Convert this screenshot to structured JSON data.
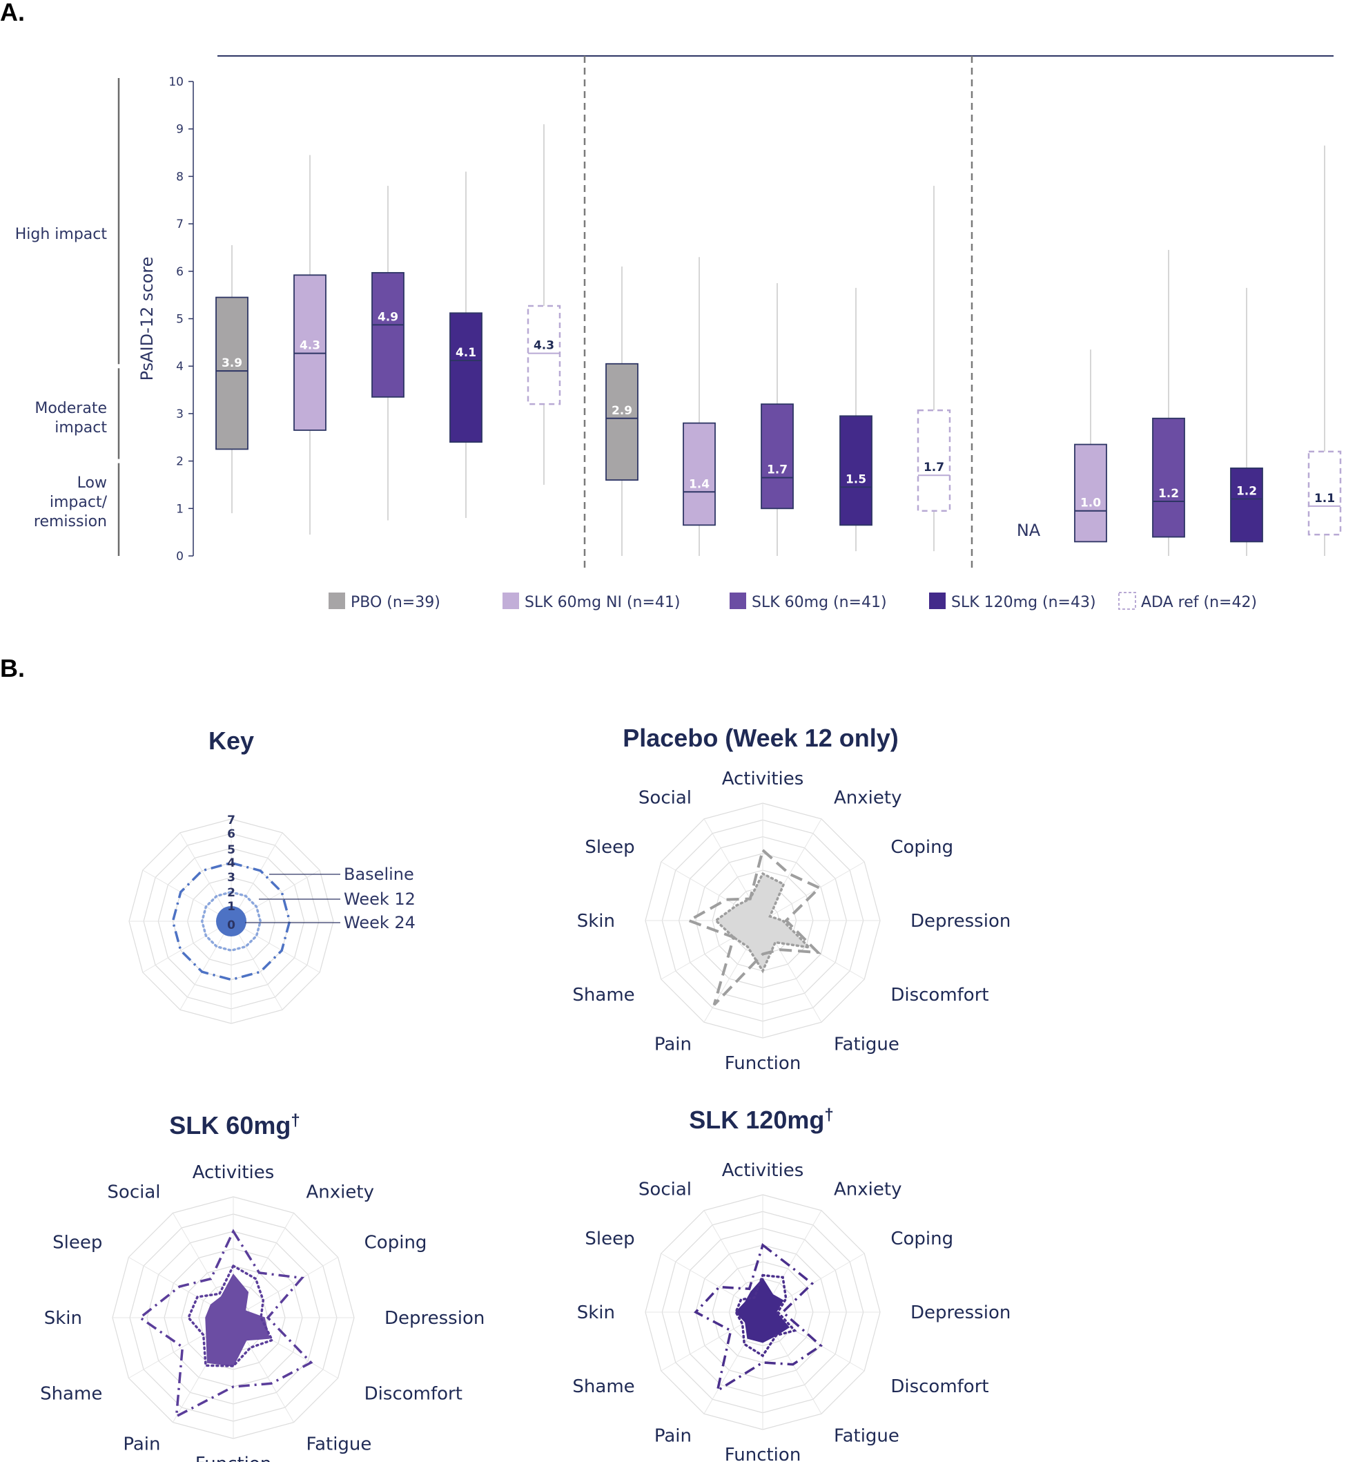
{
  "panel_a": {
    "label": "A."
  },
  "panel_b": {
    "label": "B."
  },
  "chart_data": [
    {
      "type": "boxplot",
      "ylabel": "PsAID-12 score",
      "ylim": [
        0,
        10
      ],
      "yticks": [
        0,
        1,
        2,
        3,
        4,
        5,
        6,
        7,
        8,
        9,
        10
      ],
      "impact_bands": [
        {
          "label": [
            "High impact"
          ],
          "range": [
            4,
            10
          ]
        },
        {
          "label": [
            "Moderate",
            "impact"
          ],
          "range": [
            2,
            4
          ]
        },
        {
          "label": [
            "Low",
            "impact/",
            "remission"
          ],
          "range": [
            0,
            2
          ]
        }
      ],
      "legend_position": "bottom",
      "series": [
        {
          "name": "PBO (n=39)",
          "color": "#a7a5a6",
          "style": "filled"
        },
        {
          "name": "SLK 60mg NI (n=41)",
          "color": "#c2aed8",
          "style": "filled"
        },
        {
          "name": "SLK 60mg (n=41)",
          "color": "#6b4da3",
          "style": "filled"
        },
        {
          "name": "SLK 120mg (n=43)",
          "color": "#432a8a",
          "style": "filled"
        },
        {
          "name": "ADA ref (n=42)",
          "color": "#b8a9d4",
          "style": "dashed"
        }
      ],
      "groups": [
        {
          "boxes": [
            {
              "series": 0,
              "min": 0.9,
              "q1": 2.25,
              "median": 3.9,
              "q3": 5.45,
              "max": 6.55,
              "label": "3.9"
            },
            {
              "series": 1,
              "min": 0.45,
              "q1": 2.65,
              "median": 4.27,
              "q3": 5.92,
              "max": 8.45,
              "label": "4.3"
            },
            {
              "series": 2,
              "min": 0.75,
              "q1": 3.35,
              "median": 4.87,
              "q3": 5.97,
              "max": 7.8,
              "label": "4.9"
            },
            {
              "series": 3,
              "min": 0.8,
              "q1": 2.4,
              "median": 4.12,
              "q3": 5.12,
              "max": 8.1,
              "label": "4.1"
            },
            {
              "series": 4,
              "min": 1.5,
              "q1": 3.2,
              "median": 4.27,
              "q3": 5.27,
              "max": 9.1,
              "label": "4.3"
            }
          ]
        },
        {
          "boxes": [
            {
              "series": 0,
              "min": 0.0,
              "q1": 1.6,
              "median": 2.9,
              "q3": 4.05,
              "max": 6.1,
              "label": "2.9"
            },
            {
              "series": 1,
              "min": 0.0,
              "q1": 0.65,
              "median": 1.35,
              "q3": 2.8,
              "max": 6.3,
              "label": "1.4"
            },
            {
              "series": 2,
              "min": 0.0,
              "q1": 1.0,
              "median": 1.65,
              "q3": 3.2,
              "max": 5.75,
              "label": "1.7"
            },
            {
              "series": 3,
              "min": 0.1,
              "q1": 0.65,
              "median": 1.45,
              "q3": 2.95,
              "max": 5.65,
              "label": "1.5"
            },
            {
              "series": 4,
              "min": 0.1,
              "q1": 0.95,
              "median": 1.7,
              "q3": 3.07,
              "max": 7.8,
              "label": "1.7"
            }
          ]
        },
        {
          "na_label": "NA",
          "boxes": [
            {
              "series": 1,
              "min": 0.3,
              "q1": 0.3,
              "median": 0.95,
              "q3": 2.35,
              "max": 4.35,
              "label": "1.0"
            },
            {
              "series": 2,
              "min": 0.0,
              "q1": 0.4,
              "median": 1.15,
              "q3": 2.9,
              "max": 6.45,
              "label": "1.2"
            },
            {
              "series": 3,
              "min": 0.0,
              "q1": 0.3,
              "median": 1.2,
              "q3": 1.85,
              "max": 5.65,
              "label": "1.2"
            },
            {
              "series": 4,
              "min": 0.0,
              "q1": 0.45,
              "median": 1.05,
              "q3": 2.2,
              "max": 8.65,
              "label": "1.1"
            }
          ]
        }
      ]
    },
    {
      "type": "radar-key",
      "title": "Key",
      "rings": [
        0,
        1,
        2,
        3,
        4,
        5,
        6,
        7
      ],
      "entries": [
        {
          "label": "Baseline",
          "value": 4,
          "style": "dash-dot"
        },
        {
          "label": "Week 12",
          "value": 2,
          "style": "dotted"
        },
        {
          "label": "Week 24",
          "value": 0,
          "style": "filled"
        }
      ],
      "color": "#4d72c4"
    },
    {
      "type": "radar",
      "title": "Placebo (Week 12 only)",
      "title_sup": "",
      "color": "#9e9e9e",
      "fill": "#d9d9d9",
      "axes": [
        "Activities",
        "Anxiety",
        "Coping",
        "Depression",
        "Discomfort",
        "Fatigue",
        "Function",
        "Pain",
        "Shame",
        "Skin",
        "Sleep",
        "Social"
      ],
      "rmax": 7,
      "series": [
        {
          "label": "Baseline",
          "style": "dashed",
          "values": [
            4.2,
            3.2,
            3.9,
            1.4,
            3.8,
            2.0,
            2.0,
            5.8,
            2.0,
            4.4,
            2.5,
            1.5
          ]
        },
        {
          "label": "Week 12",
          "style": "dotted-filled",
          "values": [
            2.8,
            2.5,
            0.5,
            1.2,
            3.2,
            1.5,
            3.0,
            1.8,
            2.0,
            2.8,
            1.8,
            1.5
          ]
        }
      ]
    },
    {
      "type": "radar",
      "title": "SLK 60mg",
      "title_sup": "†",
      "color": "#5a3d9a",
      "fill": "#6b4da3",
      "axes": [
        "Activities",
        "Anxiety",
        "Coping",
        "Depression",
        "Discomfort",
        "Fatigue",
        "Function",
        "Pain",
        "Shame",
        "Skin",
        "Sleep",
        "Social"
      ],
      "rmax": 7,
      "series": [
        {
          "label": "Baseline",
          "style": "dash-dot",
          "values": [
            5.0,
            3.0,
            4.6,
            2.0,
            5.2,
            4.4,
            4.0,
            6.6,
            3.4,
            5.4,
            3.6,
            2.6
          ]
        },
        {
          "label": "Week 12",
          "style": "dotted",
          "values": [
            3.0,
            2.6,
            2.0,
            1.6,
            2.6,
            2.0,
            2.8,
            3.2,
            2.0,
            2.6,
            2.4,
            1.6
          ]
        },
        {
          "label": "Week 24",
          "style": "filled",
          "values": [
            2.5,
            1.7,
            0.8,
            1.8,
            2.4,
            1.5,
            2.8,
            3.0,
            1.8,
            1.6,
            1.5,
            1.4
          ]
        }
      ]
    },
    {
      "type": "radar",
      "title": "SLK 120mg",
      "title_sup": "†",
      "color": "#4a2f8c",
      "fill": "#432a8a",
      "axes": [
        "Activities",
        "Anxiety",
        "Coping",
        "Depression",
        "Discomfort",
        "Fatigue",
        "Function",
        "Pain",
        "Shame",
        "Skin",
        "Sleep",
        "Social"
      ],
      "rmax": 7,
      "series": [
        {
          "label": "Baseline",
          "style": "dash-dot",
          "values": [
            4.0,
            3.2,
            3.4,
            1.2,
            4.0,
            3.6,
            3.0,
            5.4,
            2.2,
            4.0,
            3.0,
            1.6
          ]
        },
        {
          "label": "Week 12",
          "style": "dotted",
          "values": [
            2.2,
            2.4,
            1.6,
            0.9,
            2.2,
            1.6,
            2.6,
            2.2,
            1.4,
            1.6,
            1.5,
            1.0
          ]
        },
        {
          "label": "Week 24",
          "style": "filled",
          "values": [
            2.0,
            1.2,
            1.4,
            0.8,
            1.8,
            1.6,
            1.8,
            1.8,
            1.2,
            1.6,
            1.2,
            1.4
          ]
        }
      ]
    }
  ]
}
